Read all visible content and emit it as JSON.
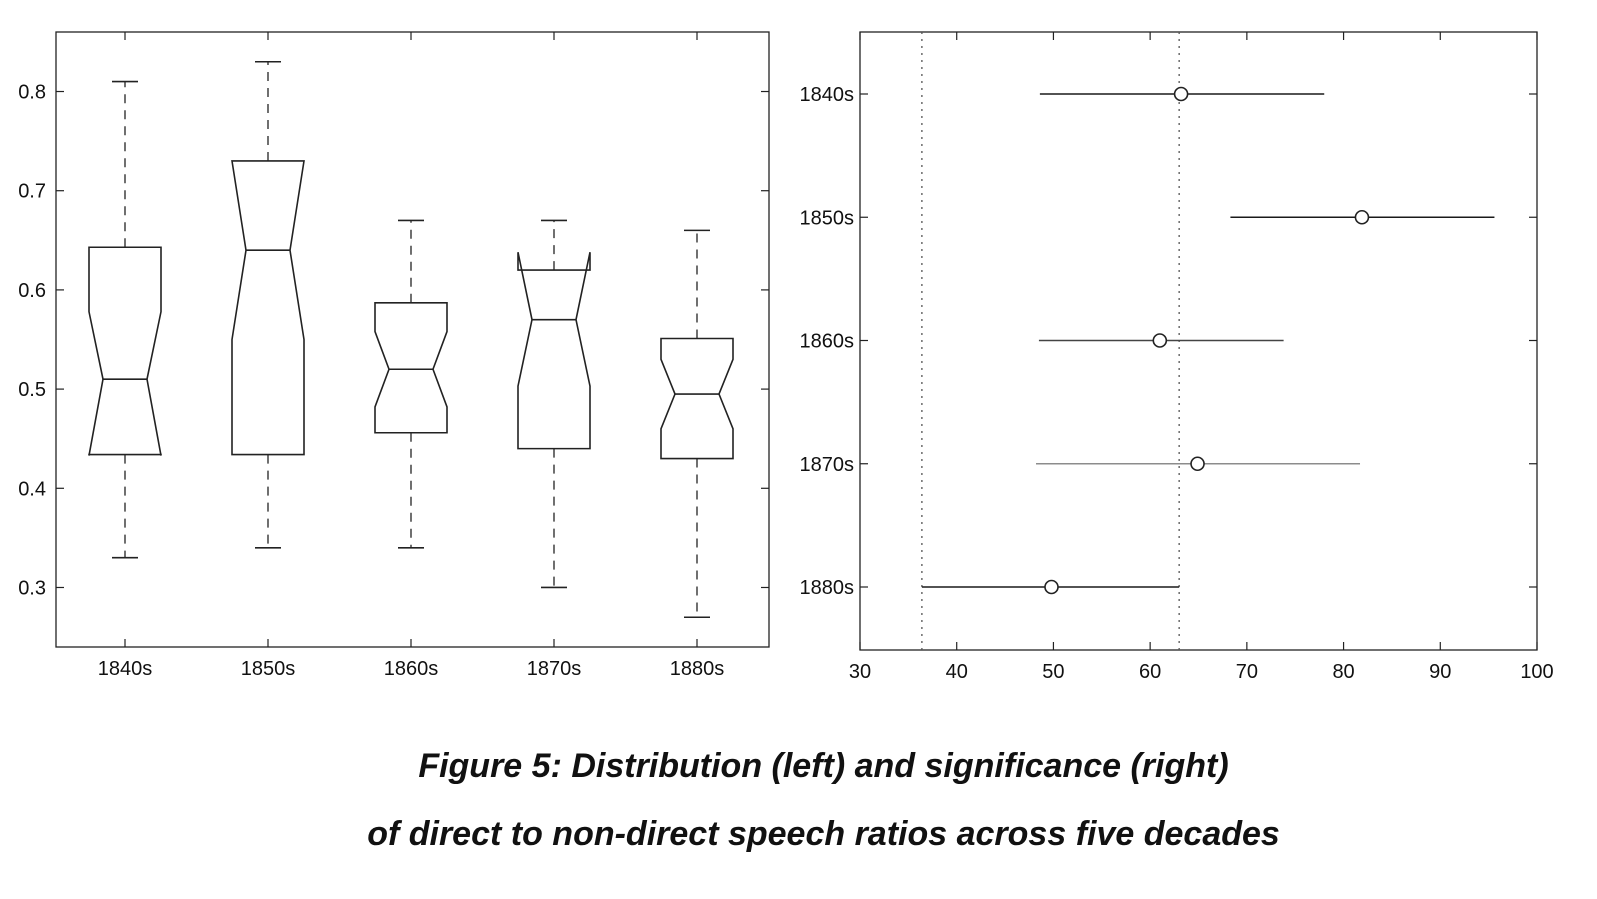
{
  "chart_data": [
    {
      "type": "box",
      "notched": true,
      "categories": [
        "1840s",
        "1850s",
        "1860s",
        "1870s",
        "1880s"
      ],
      "ylim": [
        0.24,
        0.86
      ],
      "yticks": [
        0.3,
        0.4,
        0.5,
        0.6,
        0.7,
        0.8
      ],
      "ytick_labels": [
        "0.3",
        "0.4",
        "0.5",
        "0.6",
        "0.7",
        "0.8"
      ],
      "boxes": [
        {
          "category": "1840s",
          "whisker_low": 0.33,
          "q1": 0.434,
          "median": 0.51,
          "q3": 0.643,
          "whisker_high": 0.81,
          "notch_low": 0.433,
          "notch_high": 0.578
        },
        {
          "category": "1850s",
          "whisker_low": 0.34,
          "q1": 0.434,
          "median": 0.64,
          "q3": 0.73,
          "whisker_high": 0.83,
          "notch_low": 0.55,
          "notch_high": 0.73
        },
        {
          "category": "1860s",
          "whisker_low": 0.34,
          "q1": 0.456,
          "median": 0.52,
          "q3": 0.587,
          "whisker_high": 0.67,
          "notch_low": 0.482,
          "notch_high": 0.558
        },
        {
          "category": "1870s",
          "whisker_low": 0.3,
          "q1": 0.44,
          "median": 0.57,
          "q3": 0.62,
          "whisker_high": 0.67,
          "notch_low": 0.503,
          "notch_high": 0.638
        },
        {
          "category": "1880s",
          "whisker_low": 0.27,
          "q1": 0.43,
          "median": 0.495,
          "q3": 0.551,
          "whisker_high": 0.66,
          "notch_low": 0.46,
          "notch_high": 0.53
        }
      ],
      "grid": false,
      "title": "",
      "xlabel": "",
      "ylabel": ""
    },
    {
      "type": "interval",
      "categories": [
        "1840s",
        "1850s",
        "1860s",
        "1870s",
        "1880s"
      ],
      "xlim": [
        30,
        100
      ],
      "xticks": [
        30,
        40,
        50,
        60,
        70,
        80,
        90,
        100
      ],
      "xtick_labels": [
        "30",
        "40",
        "50",
        "60",
        "70",
        "80",
        "90",
        "100"
      ],
      "points": [
        {
          "category": "1840s",
          "estimate": 63.2,
          "low": 48.6,
          "high": 78.0,
          "color": "#1a1a1a"
        },
        {
          "category": "1850s",
          "estimate": 81.9,
          "low": 68.3,
          "high": 95.6,
          "color": "#1a1a1a"
        },
        {
          "category": "1860s",
          "estimate": 61.0,
          "low": 48.5,
          "high": 73.8,
          "color": "#444444"
        },
        {
          "category": "1870s",
          "estimate": 64.9,
          "low": 48.2,
          "high": 81.7,
          "color": "#8c8c8c"
        },
        {
          "category": "1880s",
          "estimate": 49.8,
          "low": 36.4,
          "high": 63.0,
          "color": "#1a1a1a"
        }
      ],
      "reference_lines": [
        36.4,
        63.0
      ],
      "grid": false,
      "title": "",
      "xlabel": "",
      "ylabel": ""
    }
  ],
  "caption": {
    "line1": "Figure 5: Distribution (left) and significance (right)",
    "line2": "of direct to non-direct speech ratios across five decades"
  }
}
